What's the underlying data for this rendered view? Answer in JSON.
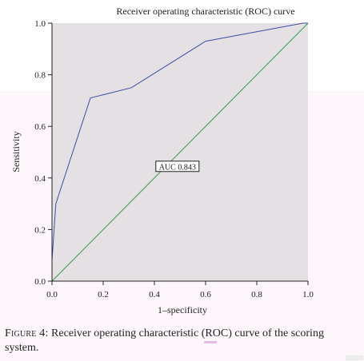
{
  "chart_data": {
    "type": "line",
    "title": "Receiver operating characteristic (ROC) curve",
    "xlabel": "1–specificity",
    "ylabel": "Sensitivity",
    "xlim": [
      0,
      1
    ],
    "ylim": [
      0,
      1
    ],
    "xticks": [
      "0.0",
      "0.2",
      "0.4",
      "0.6",
      "0.8",
      "1.0"
    ],
    "yticks": [
      "0.0",
      "0.2",
      "0.4",
      "0.6",
      "0.8",
      "1.0"
    ],
    "grid": false,
    "series": [
      {
        "role": "roc",
        "color": "#3b4fa8",
        "x": [
          0.0,
          0.0,
          0.015,
          0.15,
          0.31,
          0.6,
          0.98,
          1.0
        ],
        "y": [
          0.0,
          0.08,
          0.3,
          0.71,
          0.75,
          0.93,
          1.0,
          1.0
        ]
      },
      {
        "role": "reference",
        "color": "#2e9d4a",
        "x": [
          0,
          1
        ],
        "y": [
          0,
          1
        ]
      }
    ],
    "annotations": [
      {
        "text": "AUC 0.843",
        "x": 0.49,
        "y": 0.445
      }
    ],
    "colors": {
      "plot_background": "#e4e0e3",
      "axis": "#222222"
    }
  },
  "caption": {
    "label": "Figure 4:",
    "text": "Receiver operating characteristic (ROC) curve of the scoring system."
  }
}
